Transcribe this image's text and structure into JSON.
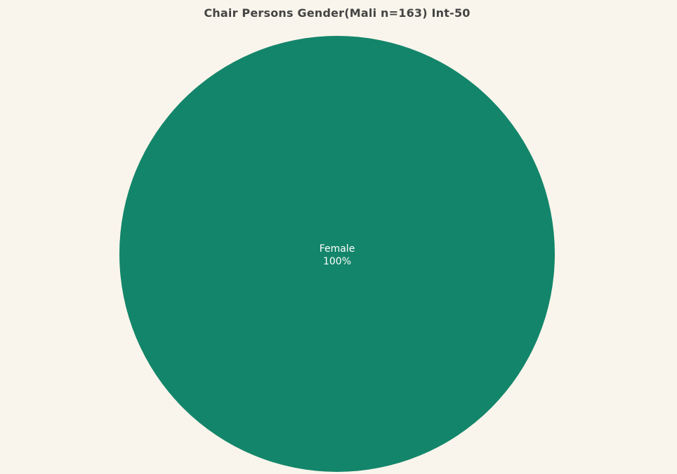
{
  "chart_data": {
    "type": "pie",
    "title": "Chair Persons Gender(Mali n=163) Int-50",
    "slices": [
      {
        "label": "Female",
        "value": 100,
        "percent_label": "100%",
        "color": "#13856a"
      }
    ]
  },
  "colors": {
    "background": "#f9f5ec",
    "title": "#444444",
    "label_text": "#ffffff"
  }
}
